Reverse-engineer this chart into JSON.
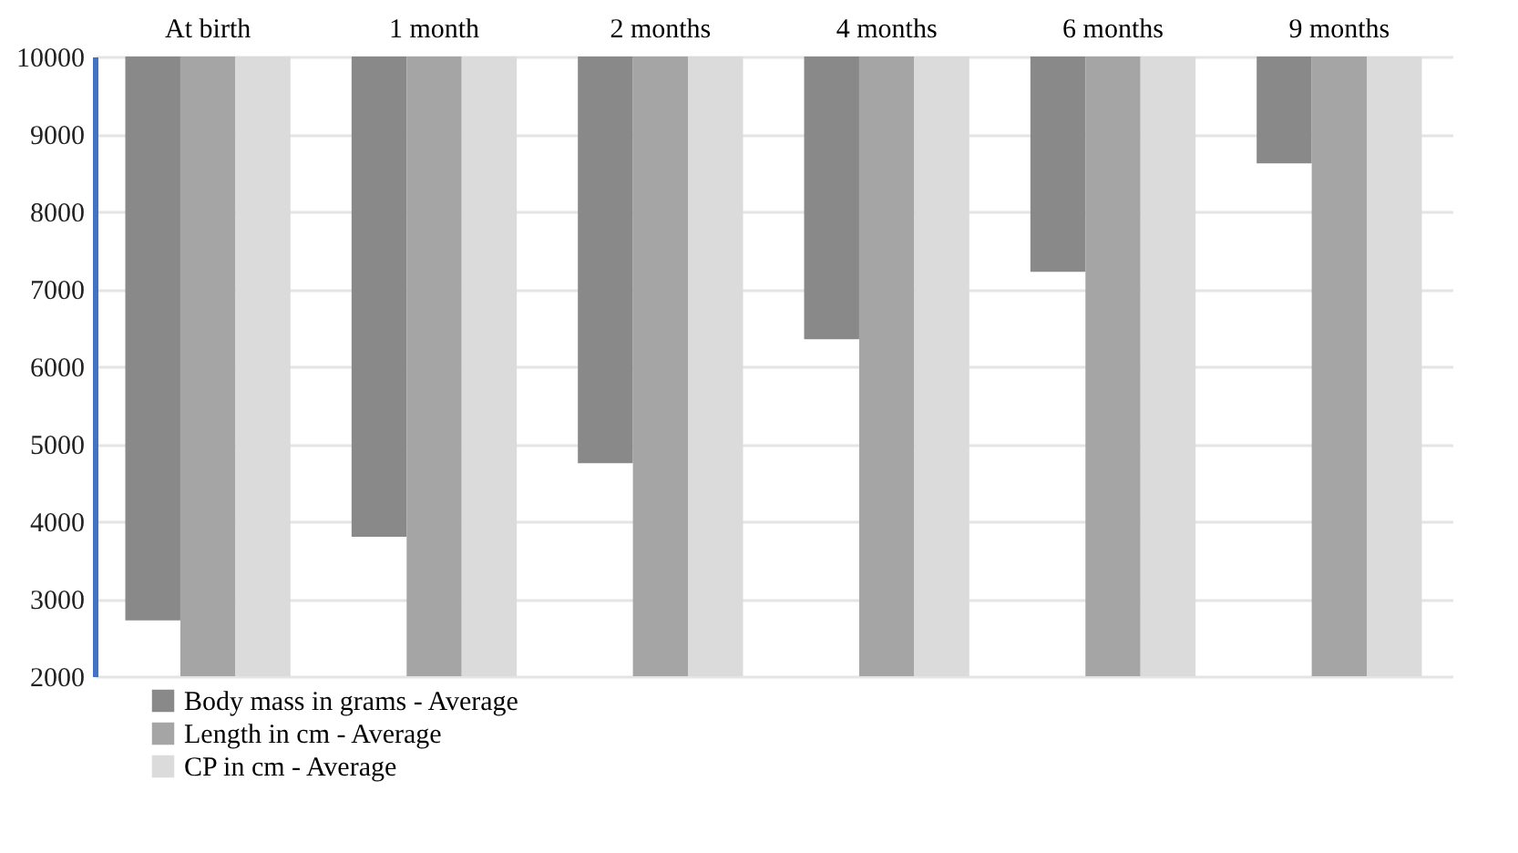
{
  "chart_data": {
    "type": "bar",
    "categories": [
      "At birth",
      "1 month",
      "2 months",
      "4 months",
      "6 months",
      "9 months"
    ],
    "series": [
      {
        "name": "Body mass in grams - Average",
        "color": "#898989",
        "base": [
          2720,
          3800,
          4750,
          6350,
          7220,
          8620
        ],
        "values": [
          7280,
          6200,
          5250,
          3650,
          2780,
          1380
        ]
      },
      {
        "name": "Length in cm - Average",
        "color": "#a5a5a5",
        "base": [
          2000,
          2000,
          2000,
          2000,
          2000,
          2000
        ],
        "values": [
          8000,
          8000,
          8000,
          8000,
          8000,
          8000
        ]
      },
      {
        "name": "CP in cm - Average",
        "color": "#dbdbdb",
        "base": [
          2000,
          2000,
          2000,
          2000,
          2000,
          2000
        ],
        "values": [
          8000,
          8000,
          8000,
          8000,
          8000,
          8000
        ]
      }
    ],
    "ylim": [
      2000,
      10000
    ],
    "yticks": [
      2000,
      3000,
      4000,
      5000,
      6000,
      7000,
      8000,
      9000,
      10000
    ],
    "grid": "y",
    "legend": "bottom left"
  }
}
